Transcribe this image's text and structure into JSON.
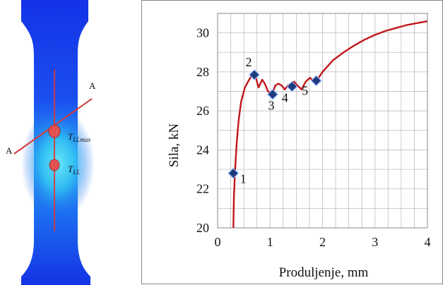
{
  "thermal_image": {
    "section_labels": [
      "A",
      "A"
    ],
    "points": [
      {
        "label_base": "T",
        "label_sub": "LLmax"
      },
      {
        "label_base": "T",
        "label_sub": "LL"
      }
    ],
    "colors": {
      "background": "#1533e8",
      "hot": "#36d7f5",
      "line": "#d63a3a",
      "point": "#e35252"
    }
  },
  "chart_data": {
    "type": "line",
    "title": "",
    "xlabel": "Produljenje, mm",
    "ylabel": "Sila, kN",
    "xlim": [
      0,
      4
    ],
    "ylim": [
      20,
      31
    ],
    "xticks": [
      0,
      1,
      2,
      3,
      4
    ],
    "yticks": [
      20,
      22,
      24,
      26,
      28,
      30
    ],
    "grid": true,
    "line_color": "#c0161b",
    "series": [
      {
        "x": [
          0.3,
          0.31,
          0.33,
          0.36,
          0.4,
          0.45,
          0.52,
          0.6,
          0.67,
          0.72,
          0.78,
          0.85,
          0.9,
          0.96,
          1.02,
          1.06,
          1.1,
          1.16,
          1.22,
          1.28,
          1.34,
          1.4,
          1.46,
          1.52,
          1.6,
          1.68,
          1.76,
          1.84,
          1.9,
          2.0,
          2.2,
          2.4,
          2.6,
          2.8,
          3.0,
          3.2,
          3.4,
          3.6,
          3.8,
          4.0
        ],
        "values": [
          20.0,
          21.5,
          22.8,
          24.2,
          25.5,
          26.5,
          27.2,
          27.6,
          27.9,
          27.8,
          27.2,
          27.6,
          27.4,
          27.0,
          26.9,
          27.0,
          27.3,
          27.4,
          27.3,
          27.1,
          27.3,
          27.4,
          27.5,
          27.3,
          27.1,
          27.5,
          27.7,
          27.5,
          27.6,
          28.0,
          28.6,
          29.0,
          29.35,
          29.65,
          29.9,
          30.1,
          30.25,
          30.4,
          30.5,
          30.6
        ]
      }
    ],
    "markers": [
      {
        "label": "1",
        "x": 0.3,
        "y": 22.8
      },
      {
        "label": "2",
        "x": 0.7,
        "y": 27.85
      },
      {
        "label": "3",
        "x": 1.05,
        "y": 26.85
      },
      {
        "label": "4",
        "x": 1.42,
        "y": 27.25
      },
      {
        "label": "5",
        "x": 1.88,
        "y": 27.55
      }
    ]
  }
}
